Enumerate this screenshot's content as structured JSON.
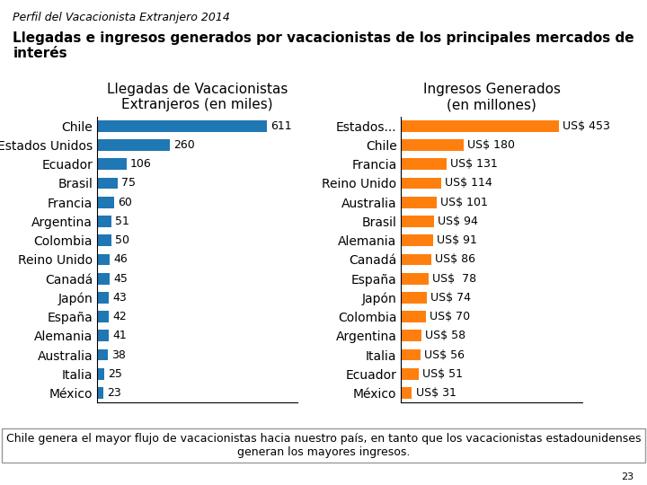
{
  "title": "Llegadas e ingresos generados por vacacionistas de los principales mercados de interés",
  "subtitle": "Perfil del Vacacionista Extranjero 2014",
  "annotations": [
    "Chile genera el mayor flujo de vacacionistas hacia nuestro país, en tanto que los vacacionistas estadounidenses generan los mayores ingresos.",
    "23"
  ],
  "chart_data": [
    {
      "type": "bar",
      "orientation": "horizontal",
      "title": "Llegadas de Vacacionistas\nExtranjeros (en miles)",
      "categories": [
        "Chile",
        "Estados Unidos",
        "Ecuador",
        "Brasil",
        "Francia",
        "Argentina",
        "Colombia",
        "Reino Unido",
        "Canadá",
        "Japón",
        "España",
        "Alemania",
        "Australia",
        "Italia",
        "México"
      ],
      "values": [
        611,
        260,
        106,
        75,
        60,
        51,
        50,
        46,
        45,
        43,
        42,
        41,
        38,
        25,
        23
      ],
      "xlim": [
        0,
        720
      ],
      "data_labels": true,
      "tick_labels": "y",
      "grid": false
    },
    {
      "type": "bar",
      "orientation": "horizontal",
      "title": "Ingresos Generados\n(en millones)",
      "categories": [
        "Estados...",
        "Chile",
        "Francia",
        "Reino Unido",
        "Australia",
        "Brasil",
        "Alemania",
        "Canadá",
        "España",
        "Japón",
        "Colombia",
        "Argentina",
        "Italia",
        "Ecuador",
        "México"
      ],
      "values": [
        453,
        180,
        131,
        114,
        101,
        94,
        91,
        86,
        78,
        74,
        70,
        58,
        56,
        51,
        31
      ],
      "value_labels": [
        "US$ 453",
        "US$ 180",
        "US$ 131",
        "US$ 114",
        "US$ 101",
        "US$ 94",
        "US$ 91",
        "US$ 86",
        "US$  78",
        "US$ 74",
        "US$ 70",
        "US$ 58",
        "US$ 56",
        "US$ 51",
        "US$ 31"
      ],
      "xlim": [
        0,
        520
      ],
      "data_labels": true,
      "tick_labels": "y",
      "grid": false
    }
  ]
}
